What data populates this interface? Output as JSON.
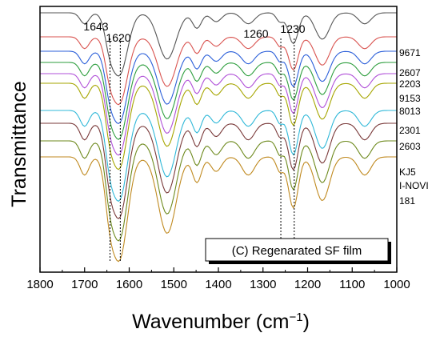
{
  "chart_data": {
    "type": "line",
    "xlabel": "Wavenumber (cm",
    "xlabel_sup": "−1",
    "xlabel_close": ")",
    "ylabel": "Transmittance",
    "xlim": [
      1800,
      1000
    ],
    "x_ticks": [
      1800,
      1700,
      1600,
      1500,
      1400,
      1300,
      1200,
      1100,
      1000
    ],
    "grid": false,
    "annotation_box": "(C) Regenarated SF film",
    "reference_lines": [
      {
        "x": 1643,
        "label": "1643"
      },
      {
        "x": 1620,
        "label": "1620"
      },
      {
        "x": 1260,
        "label": "1260"
      },
      {
        "x": 1230,
        "label": "1230"
      }
    ],
    "series": [
      {
        "name": "9671",
        "color": "#555555"
      },
      {
        "name": "2607",
        "color": "#d9534f"
      },
      {
        "name": "2203",
        "color": "#2b5fd9"
      },
      {
        "name": "9153",
        "color": "#2e9e3e"
      },
      {
        "name": "8013",
        "color": "#b050d8"
      },
      {
        "name": "2301",
        "color": "#a6a600"
      },
      {
        "name": "2603",
        "color": "#30b8d8"
      },
      {
        "name": "KJ5",
        "color": "#7a3a3a"
      },
      {
        "name": "I-NOVI",
        "color": "#6e8a1e"
      },
      {
        "name": "181",
        "color": "#c08a20"
      }
    ]
  }
}
